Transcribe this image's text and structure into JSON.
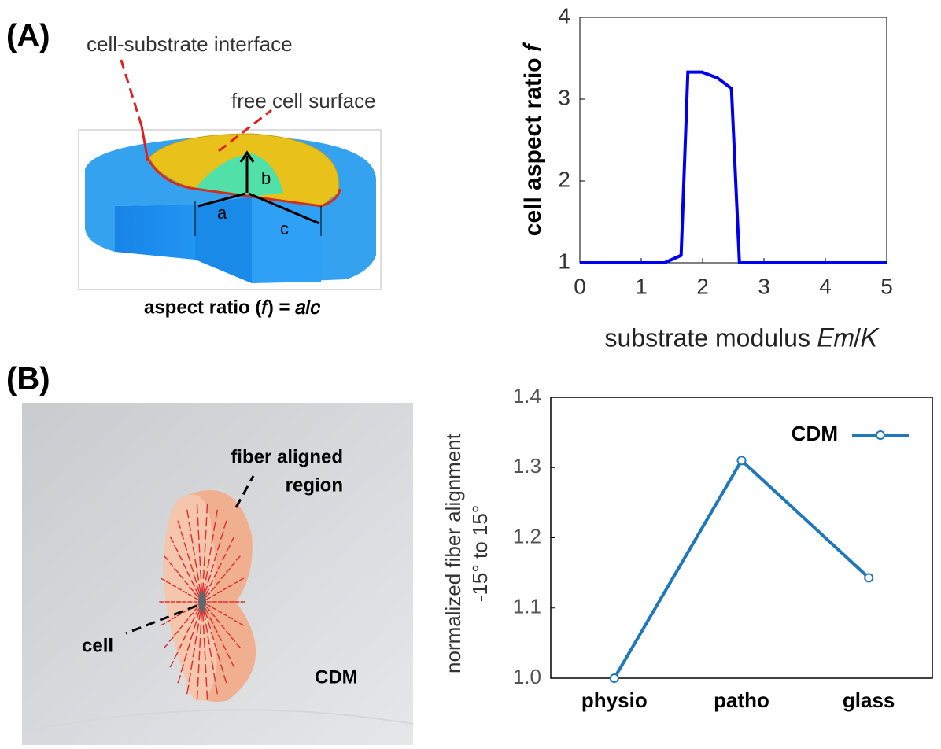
{
  "panel_labels": [
    "(A)",
    "(B)"
  ],
  "illustration_a": {
    "labels": [
      "cell-substrate interface",
      "free cell surface",
      "a",
      "b",
      "c"
    ],
    "caption": "aspect ratio (𝑓) = 𝑎/𝑐"
  },
  "illustration_b": {
    "labels": [
      "fiber aligned",
      "region",
      "cell",
      "CDM"
    ]
  },
  "chart_data": [
    {
      "type": "line",
      "y_label": "cell aspect ratio 𝑓",
      "x_label": "substrate modulus 𝐸𝑚/𝐾",
      "x": [
        0,
        1.38,
        1.65,
        1.76,
        1.99,
        2.24,
        2.47,
        2.6,
        5
      ],
      "values": [
        1,
        1,
        1.09,
        3.33,
        3.33,
        3.26,
        3.13,
        1,
        1
      ],
      "color": "#0000ee",
      "xlim": [
        0,
        5
      ],
      "xticks": [
        0,
        1,
        2,
        3,
        4,
        5
      ],
      "ylim": [
        1,
        4
      ],
      "yticks": [
        1,
        2,
        3,
        4
      ]
    },
    {
      "type": "line",
      "y_label": [
        "normalized  fiber alignment",
        "-15° to 15°"
      ],
      "categories": [
        "physio",
        "patho",
        "glass"
      ],
      "series": [
        {
          "name": "CDM",
          "color": "#1f77bc",
          "values": [
            1.0,
            1.31,
            1.143
          ]
        }
      ],
      "ylim": [
        1,
        1.4
      ],
      "yticks": [
        {
          "value": 1,
          "label": "1.0"
        },
        1.1,
        1.2,
        1.3,
        1.4
      ],
      "legend": "upper right"
    }
  ]
}
